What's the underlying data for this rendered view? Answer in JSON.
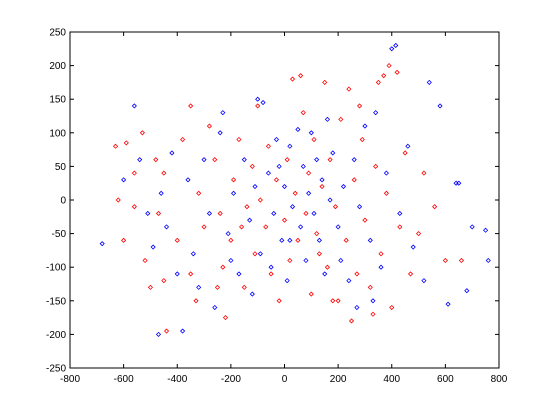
{
  "chart_data": {
    "type": "scatter",
    "marker": "diamond",
    "xlim": [
      -800,
      800
    ],
    "xticks": [
      -800,
      -600,
      -400,
      -200,
      0,
      200,
      400,
      600,
      800
    ],
    "ylim": [
      -250,
      250
    ],
    "yticks": [
      -250,
      -200,
      -150,
      -100,
      -50,
      0,
      50,
      100,
      150,
      200,
      250
    ],
    "series": [
      {
        "color": "#ff0000",
        "x": [
          -620,
          -630,
          -590,
          -530,
          -560,
          -600,
          -520,
          -500,
          -450,
          -440,
          -480,
          -450,
          -400,
          -380,
          -350,
          -330,
          -320,
          -300,
          -280,
          -260,
          -240,
          -230,
          -220,
          -200,
          -190,
          -170,
          -150,
          -140,
          -120,
          -110,
          -100,
          -90,
          -70,
          -60,
          -50,
          -30,
          -20,
          0,
          10,
          20,
          30,
          40,
          50,
          60,
          70,
          80,
          90,
          100,
          110,
          120,
          140,
          150,
          160,
          170,
          190,
          200,
          210,
          230,
          240,
          250,
          260,
          270,
          290,
          300,
          320,
          340,
          350,
          360,
          370,
          380,
          390,
          400,
          420,
          430,
          450,
          470,
          500,
          520,
          560,
          600,
          660,
          -560,
          -470,
          -250,
          180,
          280,
          330,
          -350,
          -160,
          130
        ],
        "values": [
          0,
          80,
          85,
          100,
          40,
          -60,
          -90,
          -130,
          -120,
          -195,
          60,
          40,
          -60,
          90,
          -110,
          -150,
          10,
          -40,
          110,
          60,
          -20,
          -100,
          -175,
          -60,
          30,
          90,
          -130,
          -10,
          50,
          -80,
          140,
          0,
          -40,
          80,
          -110,
          30,
          -150,
          -30,
          60,
          -90,
          180,
          10,
          -60,
          185,
          130,
          -20,
          40,
          -140,
          90,
          -50,
          20,
          175,
          -100,
          60,
          -10,
          -150,
          120,
          -60,
          165,
          -180,
          30,
          -110,
          90,
          -30,
          -130,
          50,
          175,
          -80,
          185,
          10,
          200,
          -160,
          190,
          -40,
          70,
          -110,
          -50,
          40,
          -10,
          -90,
          -90,
          -10,
          -20,
          -130,
          -150,
          140,
          -170,
          140,
          -40,
          -80
        ]
      },
      {
        "color": "#0000ff",
        "x": [
          -680,
          -560,
          -540,
          -510,
          -490,
          -470,
          -460,
          -420,
          -400,
          -380,
          -360,
          -340,
          -320,
          -300,
          -280,
          -260,
          -240,
          -230,
          -210,
          -190,
          -170,
          -150,
          -130,
          -110,
          -100,
          -90,
          -80,
          -60,
          -40,
          -30,
          -10,
          0,
          10,
          20,
          30,
          50,
          60,
          70,
          80,
          90,
          100,
          110,
          120,
          130,
          140,
          150,
          170,
          180,
          200,
          210,
          220,
          240,
          260,
          280,
          300,
          320,
          340,
          360,
          380,
          400,
          415,
          430,
          460,
          480,
          520,
          540,
          580,
          610,
          640,
          650,
          680,
          700,
          750,
          760,
          -600,
          -440,
          -200,
          -50,
          160,
          330,
          -120,
          270,
          20,
          -20
        ],
        "values": [
          -65,
          140,
          60,
          -20,
          -70,
          -200,
          10,
          70,
          -110,
          -195,
          30,
          -80,
          -130,
          60,
          -20,
          -160,
          100,
          130,
          -50,
          10,
          -110,
          60,
          -30,
          20,
          150,
          -80,
          145,
          40,
          -20,
          90,
          -60,
          20,
          -120,
          80,
          -10,
          105,
          -40,
          50,
          -90,
          10,
          100,
          -20,
          60,
          -60,
          30,
          -110,
          0,
          70,
          -40,
          -90,
          20,
          -120,
          60,
          -10,
          110,
          -60,
          130,
          -100,
          40,
          225,
          230,
          -20,
          80,
          -70,
          -120,
          175,
          140,
          -155,
          25,
          25,
          -135,
          -40,
          -45,
          -90,
          30,
          -40,
          -90,
          -100,
          120,
          -150,
          -140,
          -160,
          -60,
          50
        ]
      }
    ]
  }
}
